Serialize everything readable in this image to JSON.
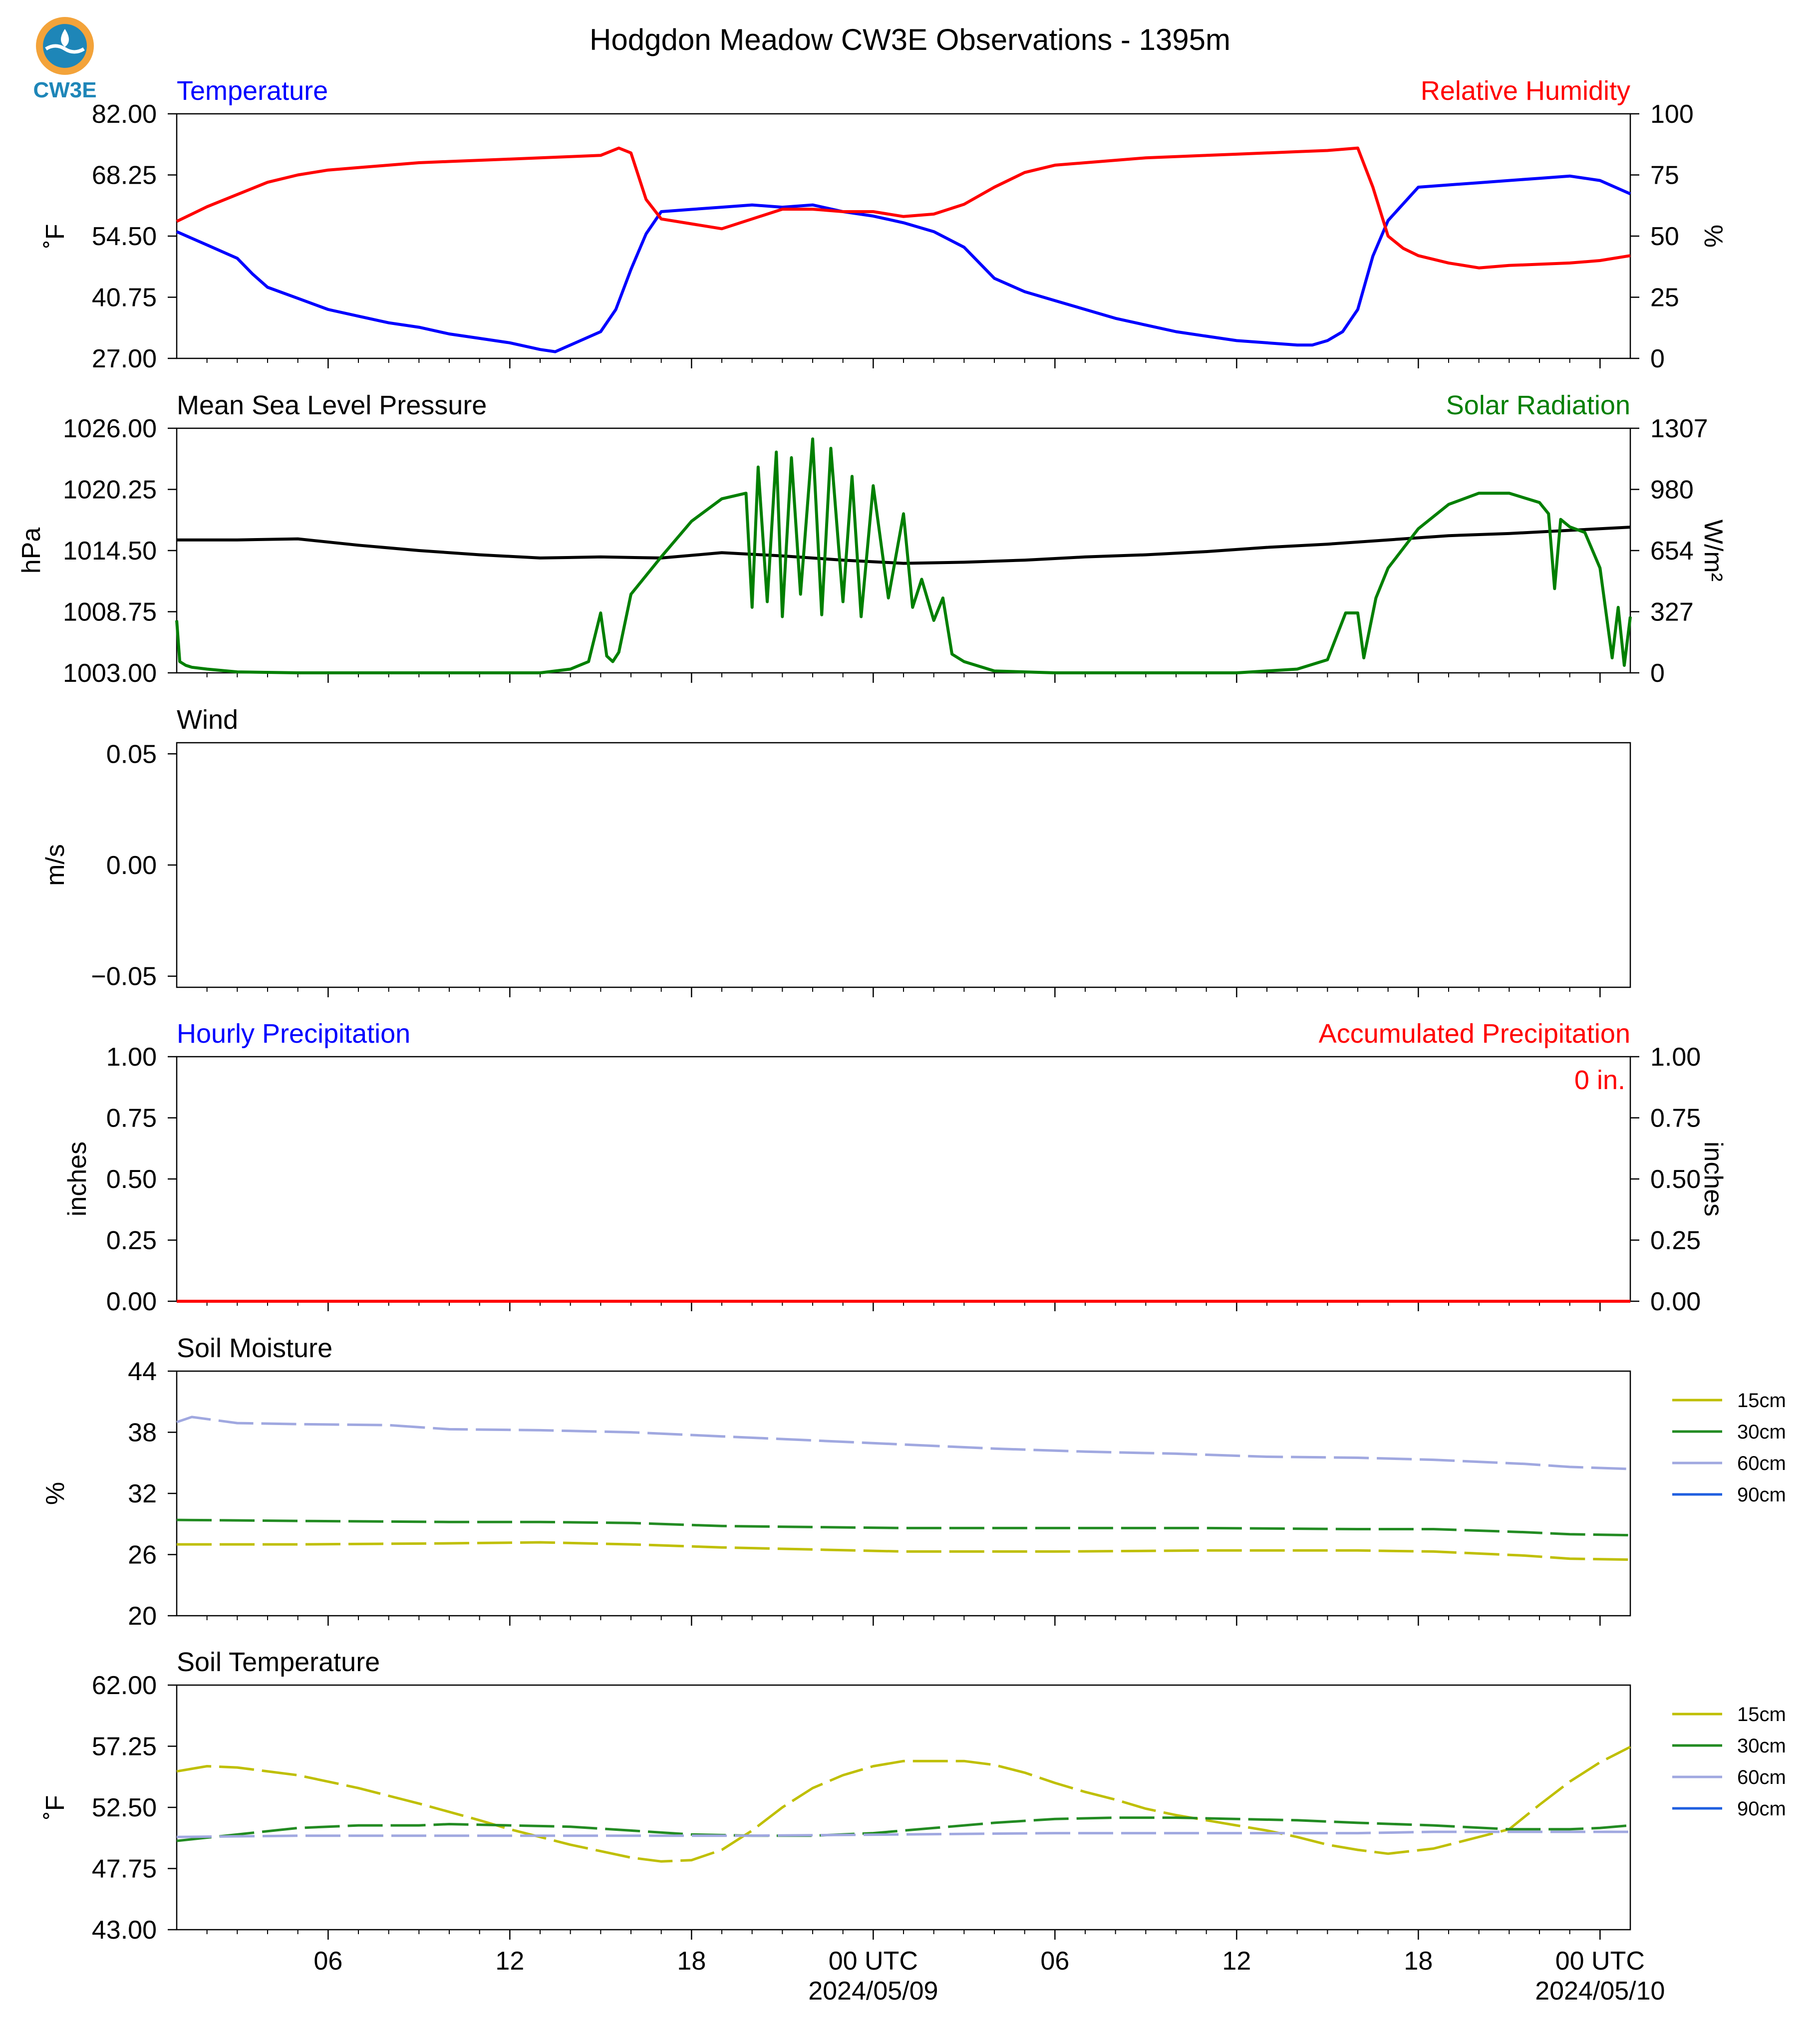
{
  "title": "Hodgdon Meadow CW3E Observations - 1395m",
  "logo": {
    "text": "CW3E",
    "colors": {
      "sun": "#f3a33a",
      "water": "#1e86b8",
      "text": "#1e86b8"
    }
  },
  "colors": {
    "temperature": "#0000ff",
    "humidity": "#ff0000",
    "pressure": "#000000",
    "solar": "#007f00",
    "accum": "#ff0000",
    "soil15": "#bfbf00",
    "soil30": "#228b22",
    "soil60": "#a0a8e0",
    "soil90": "#1f5fe0"
  },
  "xaxis": {
    "ticks": [
      "06",
      "12",
      "18",
      "00 UTC",
      "06",
      "12",
      "18",
      "00 UTC"
    ],
    "tick_hours": [
      6,
      12,
      18,
      24,
      30,
      36,
      42,
      48
    ],
    "dates": [
      "2024/05/09",
      "2024/05/10"
    ],
    "date_hours": [
      24,
      48
    ],
    "range_hours": [
      1,
      49
    ]
  },
  "chart_data": [
    {
      "type": "line",
      "title_left": "Temperature",
      "title_right": "Relative Humidity",
      "ylabel_left": "˚F",
      "ylabel_right": "%",
      "ylim_left": [
        27,
        82
      ],
      "ylim_right": [
        0,
        100
      ],
      "yticks_left": [
        "27.00",
        "40.75",
        "54.50",
        "68.25",
        "82.00"
      ],
      "yticks_right": [
        "0",
        "25",
        "50",
        "75",
        "100"
      ],
      "series": [
        {
          "name": "Temperature",
          "axis": "left",
          "color_key": "temperature",
          "x": [
            1,
            2,
            3,
            3.5,
            4,
            5,
            6,
            7,
            8,
            9,
            10,
            11,
            12,
            13,
            13.5,
            14,
            15,
            15.5,
            16,
            16.5,
            17,
            18,
            19,
            20,
            21,
            22,
            23,
            24,
            25,
            26,
            27,
            28,
            29,
            30,
            31,
            32,
            33,
            34,
            35,
            36,
            37,
            38,
            38.5,
            39,
            39.5,
            40,
            40.5,
            41,
            42,
            43,
            44,
            45,
            46,
            47,
            48,
            49
          ],
          "values": [
            55.5,
            52.5,
            49.5,
            46,
            43,
            40.5,
            38,
            36.5,
            35,
            34,
            32.5,
            31.5,
            30.5,
            29,
            28.5,
            30,
            33,
            38,
            47,
            55,
            60,
            60.5,
            61,
            61.5,
            61,
            61.5,
            60,
            59,
            57.5,
            55.5,
            52,
            45,
            42,
            40,
            38,
            36,
            34.5,
            33,
            32,
            31,
            30.5,
            30,
            30,
            31,
            33,
            38,
            50,
            58,
            65.5,
            66,
            66.5,
            67,
            67.5,
            68,
            67,
            64
          ]
        },
        {
          "name": "Relative Humidity",
          "axis": "right",
          "color_key": "humidity",
          "x": [
            1,
            2,
            3,
            4,
            5,
            6,
            7,
            8,
            9,
            10,
            11,
            12,
            13,
            14,
            15,
            15.6,
            16,
            16.5,
            17,
            18,
            19,
            20,
            21,
            22,
            23,
            24,
            25,
            26,
            27,
            28,
            29,
            30,
            31,
            32,
            33,
            34,
            35,
            36,
            37,
            38,
            39,
            40,
            40.5,
            41,
            41.5,
            42,
            43,
            44,
            45,
            46,
            47,
            48,
            49
          ],
          "values": [
            56,
            62,
            67,
            72,
            75,
            77,
            78,
            79,
            80,
            80.5,
            81,
            81.5,
            82,
            82.5,
            83,
            86,
            84,
            65,
            57,
            55,
            53,
            57,
            61,
            61,
            60,
            60,
            58,
            59,
            63,
            70,
            76,
            79,
            80,
            81,
            82,
            82.5,
            83,
            83.5,
            84,
            84.5,
            85,
            86,
            70,
            50,
            45,
            42,
            39,
            37,
            38,
            38.5,
            39,
            40,
            42
          ]
        }
      ]
    },
    {
      "type": "line",
      "title_left": "Mean Sea Level Pressure",
      "title_right": "Solar Radiation",
      "ylabel_left": "hPa",
      "ylabel_right": "W/m²",
      "ylim_left": [
        1003,
        1026
      ],
      "ylim_right": [
        0,
        1307
      ],
      "yticks_left": [
        "1003.00",
        "1008.75",
        "1014.50",
        "1020.25",
        "1026.00"
      ],
      "yticks_right": [
        "0",
        "327",
        "654",
        "980",
        "1307"
      ],
      "series": [
        {
          "name": "Mean Sea Level Pressure",
          "axis": "left",
          "color_key": "pressure",
          "x": [
            1,
            3,
            5,
            7,
            9,
            11,
            13,
            15,
            17,
            19,
            21,
            23,
            25,
            27,
            29,
            31,
            33,
            35,
            37,
            39,
            41,
            43,
            45,
            47,
            49
          ],
          "values": [
            1015.5,
            1015.5,
            1015.6,
            1015,
            1014.5,
            1014.1,
            1013.8,
            1013.9,
            1013.8,
            1014.3,
            1014,
            1013.6,
            1013.3,
            1013.4,
            1013.6,
            1013.9,
            1014.1,
            1014.4,
            1014.8,
            1015.1,
            1015.5,
            1015.9,
            1016.1,
            1016.4,
            1016.7
          ]
        },
        {
          "name": "Solar Radiation",
          "axis": "right",
          "color_key": "solar",
          "x": [
            1,
            1.1,
            1.3,
            1.5,
            2,
            3,
            5,
            8,
            11,
            13,
            14,
            14.6,
            15,
            15.2,
            15.4,
            15.6,
            16,
            17,
            18,
            19,
            19.8,
            20,
            20.2,
            20.5,
            20.8,
            21,
            21.3,
            21.6,
            22,
            22.3,
            22.6,
            23,
            23.3,
            23.6,
            24,
            24.5,
            25,
            25.3,
            25.6,
            26,
            26.3,
            26.6,
            27,
            28,
            30,
            33,
            36,
            38,
            39,
            39.6,
            40,
            40.2,
            40.6,
            41,
            42,
            43,
            44,
            45,
            46,
            46.3,
            46.5,
            46.7,
            47,
            47.5,
            48,
            48.4,
            48.6,
            48.8,
            49
          ],
          "values": [
            280,
            60,
            40,
            30,
            20,
            5,
            0,
            0,
            0,
            0,
            20,
            60,
            320,
            90,
            60,
            110,
            420,
            620,
            810,
            930,
            960,
            350,
            1100,
            380,
            1180,
            300,
            1150,
            420,
            1250,
            310,
            1200,
            380,
            1050,
            300,
            1000,
            400,
            850,
            350,
            500,
            280,
            400,
            100,
            60,
            10,
            0,
            0,
            0,
            20,
            70,
            320,
            320,
            80,
            400,
            560,
            770,
            900,
            960,
            960,
            910,
            850,
            450,
            820,
            780,
            750,
            560,
            80,
            350,
            40,
            300
          ]
        }
      ]
    },
    {
      "type": "line",
      "title_left": "Wind",
      "ylabel_left": "m/s",
      "ylim_left": [
        -0.055,
        0.055
      ],
      "yticks_left": [
        "−0.05",
        "0.00",
        "0.05"
      ],
      "ytick_values": [
        -0.05,
        0,
        0.05
      ],
      "series": []
    },
    {
      "type": "bar",
      "title_left": "Hourly Precipitation",
      "title_right": "Accumulated Precipitation",
      "annotation": "0 in.",
      "ylabel_left": "inches",
      "ylabel_right": "inches",
      "ylim_left": [
        0,
        1
      ],
      "ylim_right": [
        0,
        1
      ],
      "yticks_left": [
        "0.00",
        "0.25",
        "0.50",
        "0.75",
        "1.00"
      ],
      "yticks_right": [
        "0.00",
        "0.25",
        "0.50",
        "0.75",
        "1.00"
      ],
      "series": [
        {
          "name": "Accumulated Precipitation",
          "axis": "right",
          "color_key": "accum",
          "x": [
            1,
            49
          ],
          "values": [
            0,
            0
          ]
        }
      ]
    },
    {
      "type": "line",
      "title_left": "Soil Moisture",
      "ylabel_left": "%",
      "ylim_left": [
        20,
        44
      ],
      "yticks_left": [
        "20",
        "26",
        "32",
        "38",
        "44"
      ],
      "legend": [
        "15cm",
        "30cm",
        "60cm",
        "90cm"
      ],
      "legend_position": "right",
      "gaps": [
        [
          43,
          45.2
        ]
      ],
      "series": [
        {
          "name": "15cm",
          "color_key": "soil15",
          "x": [
            1,
            5,
            10,
            13,
            16,
            19,
            22,
            25,
            30,
            35,
            40,
            42.5,
            45.5,
            47,
            49
          ],
          "values": [
            27,
            27,
            27.1,
            27.2,
            27,
            26.7,
            26.5,
            26.3,
            26.3,
            26.4,
            26.4,
            26.3,
            25.9,
            25.6,
            25.5
          ]
        },
        {
          "name": "30cm",
          "color_key": "soil30",
          "x": [
            1,
            5,
            10,
            13,
            16,
            19,
            22,
            25,
            30,
            35,
            40,
            42.5,
            45.5,
            47,
            49
          ],
          "values": [
            29.4,
            29.3,
            29.2,
            29.2,
            29.1,
            28.8,
            28.7,
            28.6,
            28.6,
            28.6,
            28.5,
            28.5,
            28.2,
            28.0,
            27.9
          ]
        },
        {
          "name": "60cm",
          "color_key": "soil60",
          "x": [
            1,
            1.5,
            3,
            5,
            8,
            10,
            13,
            16,
            19,
            22,
            25,
            28,
            31,
            34,
            37,
            40,
            42.5,
            45.5,
            47,
            49
          ],
          "values": [
            39,
            39.5,
            38.9,
            38.8,
            38.7,
            38.3,
            38.2,
            38,
            37.6,
            37.2,
            36.8,
            36.4,
            36.1,
            35.9,
            35.6,
            35.5,
            35.3,
            34.9,
            34.6,
            34.4
          ]
        },
        {
          "name": "90cm",
          "color_key": "soil90",
          "x": [],
          "values": []
        }
      ]
    },
    {
      "type": "line",
      "title_left": "Soil Temperature",
      "ylabel_left": "˚F",
      "ylim_left": [
        43,
        62
      ],
      "yticks_left": [
        "43.00",
        "47.75",
        "52.50",
        "57.25",
        "62.00"
      ],
      "legend": [
        "15cm",
        "30cm",
        "60cm",
        "90cm"
      ],
      "legend_position": "right",
      "gaps": [
        [
          43,
          45
        ]
      ],
      "series": [
        {
          "name": "15cm",
          "color_key": "soil15",
          "x": [
            1,
            2,
            3,
            5,
            7,
            9,
            11,
            12,
            13,
            14,
            15,
            16,
            17,
            18,
            19,
            20,
            21,
            22,
            23,
            24,
            25,
            26,
            27,
            28,
            29,
            30,
            31,
            32,
            33,
            34,
            35,
            36,
            37,
            38,
            39,
            40,
            41,
            42.5,
            45,
            46,
            47,
            48,
            49
          ],
          "values": [
            55.3,
            55.7,
            55.6,
            55,
            54,
            52.8,
            51.5,
            50.8,
            50.2,
            49.6,
            49.1,
            48.6,
            48.3,
            48.4,
            49.2,
            50.7,
            52.5,
            54,
            55,
            55.7,
            56.1,
            56.1,
            56.1,
            55.8,
            55.2,
            54.4,
            53.7,
            53.1,
            52.4,
            51.9,
            51.5,
            51.1,
            50.7,
            50.2,
            49.6,
            49.2,
            48.9,
            49.3,
            50.8,
            52.7,
            54.5,
            56,
            57.2
          ]
        },
        {
          "name": "30cm",
          "color_key": "soil30",
          "x": [
            1,
            3,
            5,
            7,
            9,
            10,
            12,
            14,
            16,
            18,
            20,
            22,
            24,
            26,
            28,
            30,
            32,
            34,
            36,
            38,
            40,
            42.5,
            45,
            47,
            48,
            49
          ],
          "values": [
            49.9,
            50.4,
            50.9,
            51.1,
            51.1,
            51.2,
            51.1,
            51,
            50.7,
            50.4,
            50.3,
            50.3,
            50.5,
            50.9,
            51.3,
            51.6,
            51.7,
            51.7,
            51.6,
            51.5,
            51.3,
            51.1,
            50.8,
            50.8,
            50.9,
            51.1
          ]
        },
        {
          "name": "60cm",
          "color_key": "soil60",
          "x": [
            1,
            5,
            10,
            15,
            20,
            25,
            30,
            35,
            40,
            42.5,
            45,
            49
          ],
          "values": [
            50.2,
            50.3,
            50.3,
            50.3,
            50.3,
            50.4,
            50.5,
            50.5,
            50.5,
            50.6,
            50.6,
            50.6
          ]
        },
        {
          "name": "90cm",
          "color_key": "soil90",
          "x": [],
          "values": []
        }
      ]
    }
  ]
}
